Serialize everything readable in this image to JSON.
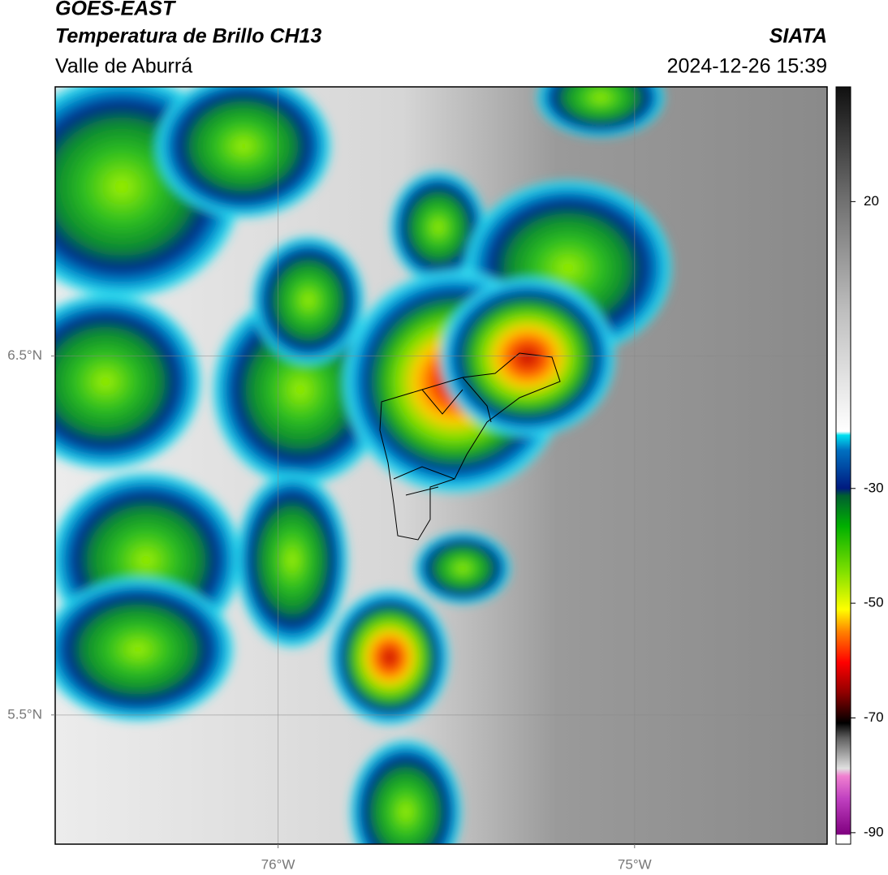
{
  "header": {
    "satellite": "GOES-EAST",
    "product": "Temperatura de Brillo CH13",
    "region": "Valle de Aburrá",
    "brand": "SIATA",
    "datetime": "2024-12-26 15:39"
  },
  "map": {
    "xlim": [
      -76.625,
      -74.46
    ],
    "ylim": [
      5.14,
      7.25
    ],
    "xticks": [
      {
        "value": -76,
        "label": "76°W"
      },
      {
        "value": -75,
        "label": "75°W"
      }
    ],
    "yticks": [
      {
        "value": 6.5,
        "label": "6.5°N"
      },
      {
        "value": 5.5,
        "label": "5.5°N"
      }
    ],
    "grid": true
  },
  "colorbar": {
    "lim": [
      -92,
      40
    ],
    "ticks": [
      20,
      -30,
      -50,
      -70,
      -90
    ]
  }
}
